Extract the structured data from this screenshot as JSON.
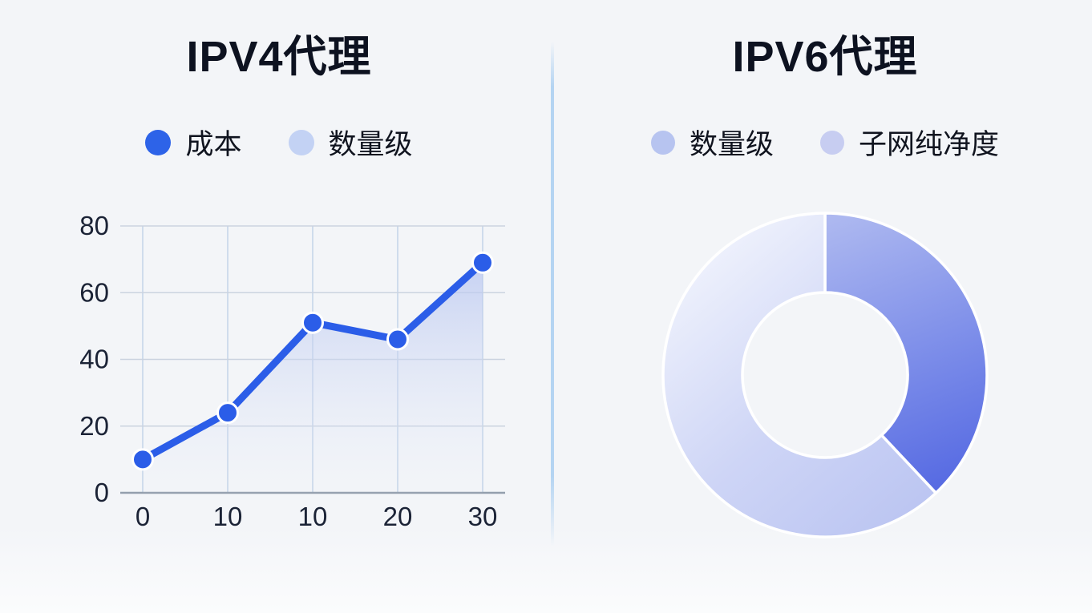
{
  "left_panel": {
    "title": "IPV4代理",
    "legend": [
      {
        "label": "成本",
        "color": "#2d63e8"
      },
      {
        "label": "数量级",
        "color": "#c3d2f4"
      }
    ]
  },
  "right_panel": {
    "title": "IPV6代理",
    "legend": [
      {
        "label": "数量级",
        "color": "#b7c4f0"
      },
      {
        "label": "子网纯净度",
        "color": "#c7cdf1"
      }
    ]
  },
  "chart_data": [
    {
      "type": "line",
      "title": "IPV4代理",
      "x_tick_labels": [
        "0",
        "10",
        "10",
        "20",
        "30"
      ],
      "y_ticks": [
        0,
        20,
        40,
        60,
        80
      ],
      "ylim": [
        0,
        80
      ],
      "grid": true,
      "legend_position": "top",
      "legend_entries": [
        "成本",
        "数量级"
      ],
      "series": [
        {
          "name": "成本",
          "values": [
            10,
            24,
            51,
            46,
            69
          ],
          "color": "#2b5de8",
          "area_fill": true,
          "point_style": "filled-circle-white-ring"
        }
      ],
      "axis_text_color": "#1b2336"
    },
    {
      "type": "pie",
      "subtype": "donut",
      "title": "IPV6代理",
      "inner_radius_ratio": 0.51,
      "start_angle_deg": 0,
      "legend_position": "top",
      "slices": [
        {
          "label": "数量级",
          "value": 38,
          "color_start": "#aeb9f0",
          "color_mid": "#7b8ce9",
          "color_end": "#4a5fe0"
        },
        {
          "label": "子网纯净度",
          "value": 62,
          "color_start": "#b9c3f1",
          "color_mid": "#ced5f6",
          "color_end": "#eef1fc"
        }
      ],
      "divider_color": "#ffffff"
    }
  ]
}
